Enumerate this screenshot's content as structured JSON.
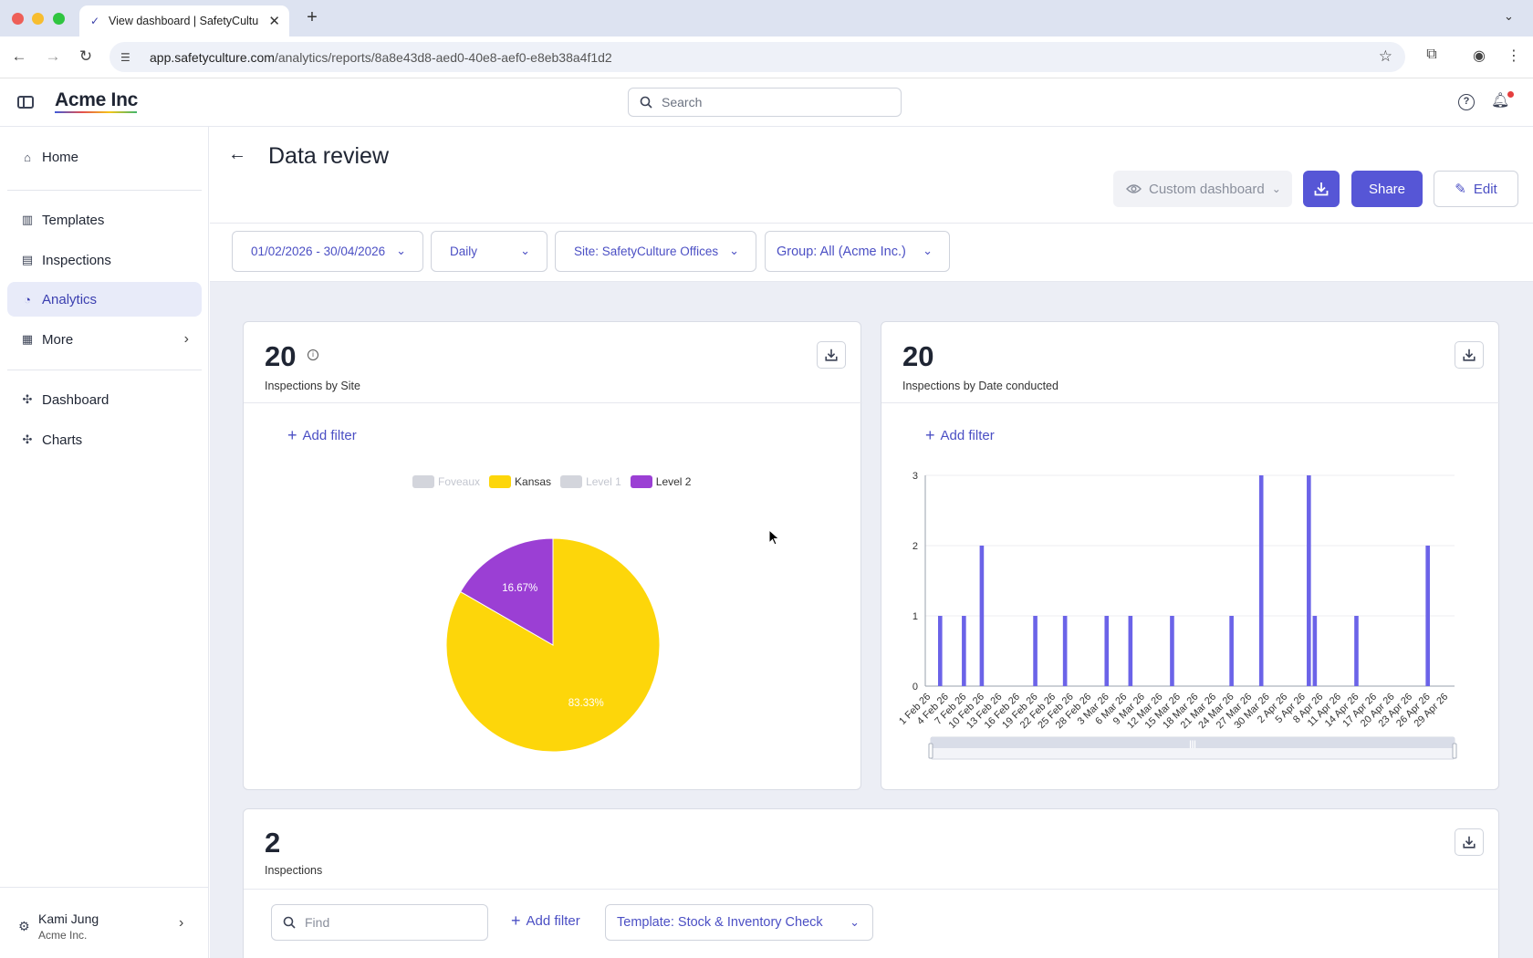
{
  "browser": {
    "tab_title": "View dashboard | SafetyCultu",
    "url_domain": "app.safetyculture.com",
    "url_path": "/analytics/reports/8a8e43d8-aed0-40e8-aef0-e8eb38a4f1d2"
  },
  "header": {
    "logo": "Acme Inc",
    "search_placeholder": "Search"
  },
  "sidebar": {
    "items": [
      {
        "label": "Home",
        "icon": "home-icon"
      },
      {
        "label": "Templates",
        "icon": "templates-icon"
      },
      {
        "label": "Inspections",
        "icon": "clipboard-icon"
      },
      {
        "label": "Analytics",
        "icon": "analytics-icon",
        "active": true
      },
      {
        "label": "More",
        "icon": "grid-icon"
      },
      {
        "label": "Dashboard",
        "icon": "puzzle-icon"
      },
      {
        "label": "Charts",
        "icon": "puzzle-icon"
      }
    ],
    "user": {
      "name": "Kami Jung",
      "org": "Acme Inc."
    }
  },
  "page": {
    "title": "Data review",
    "view_label": "Custom dashboard",
    "share_label": "Share",
    "edit_label": "Edit",
    "filters": {
      "date_range": "01/02/2026 - 30/04/2026",
      "interval": "Daily",
      "site": "Site: SafetyCulture Offices",
      "group": "Group: All (Acme Inc.)"
    }
  },
  "cards": {
    "site": {
      "count": "20",
      "label": "Inspections by Site",
      "add_filter": "Add filter"
    },
    "date": {
      "count": "20",
      "label": "Inspections by Date conducted",
      "add_filter": "Add filter"
    },
    "list": {
      "count": "2",
      "label": "Inspections",
      "find_placeholder": "Find",
      "add_filter": "Add filter",
      "template_filter": "Template: Stock & Inventory Check"
    }
  },
  "chart_data": [
    {
      "type": "pie",
      "legend": [
        {
          "name": "Foveaux",
          "color": "#d3d5dc",
          "hidden": true
        },
        {
          "name": "Kansas",
          "color": "#fdd60a",
          "hidden": false
        },
        {
          "name": "Level 1",
          "color": "#d3d5dc",
          "hidden": true
        },
        {
          "name": "Level 2",
          "color": "#9b3fd4",
          "hidden": false
        }
      ],
      "slices": [
        {
          "name": "Kansas",
          "value": 83.33,
          "label": "83.33%",
          "color": "#fdd60a"
        },
        {
          "name": "Level 2",
          "value": 16.67,
          "label": "16.67%",
          "color": "#9b3fd4"
        }
      ]
    },
    {
      "type": "bar",
      "ylim": [
        0,
        3
      ],
      "yticks": [
        0,
        1,
        2,
        3
      ],
      "bar_color": "#6b63e8",
      "xtick_labels": [
        "1 Feb 26",
        "4 Feb 26",
        "7 Feb 26",
        "10 Feb 26",
        "13 Feb 26",
        "16 Feb 26",
        "19 Feb 26",
        "22 Feb 26",
        "25 Feb 26",
        "28 Feb 26",
        "3 Mar 26",
        "6 Mar 26",
        "9 Mar 26",
        "12 Mar 26",
        "15 Mar 26",
        "18 Mar 26",
        "21 Mar 26",
        "24 Mar 26",
        "27 Mar 26",
        "30 Mar 26",
        "2 Apr 26",
        "5 Apr 26",
        "8 Apr 26",
        "11 Apr 26",
        "14 Apr 26",
        "17 Apr 26",
        "20 Apr 26",
        "23 Apr 26",
        "26 Apr 26",
        "29 Apr 26"
      ],
      "points": [
        {
          "x": "2026-02-03",
          "y": 1
        },
        {
          "x": "2026-02-07",
          "y": 1
        },
        {
          "x": "2026-02-10",
          "y": 2
        },
        {
          "x": "2026-02-19",
          "y": 1
        },
        {
          "x": "2026-02-24",
          "y": 1
        },
        {
          "x": "2026-03-03",
          "y": 1
        },
        {
          "x": "2026-03-07",
          "y": 1
        },
        {
          "x": "2026-03-14",
          "y": 1
        },
        {
          "x": "2026-03-24",
          "y": 1
        },
        {
          "x": "2026-03-29",
          "y": 3
        },
        {
          "x": "2026-04-06",
          "y": 3
        },
        {
          "x": "2026-04-07",
          "y": 1
        },
        {
          "x": "2026-04-14",
          "y": 1
        },
        {
          "x": "2026-04-26",
          "y": 2
        }
      ]
    }
  ]
}
